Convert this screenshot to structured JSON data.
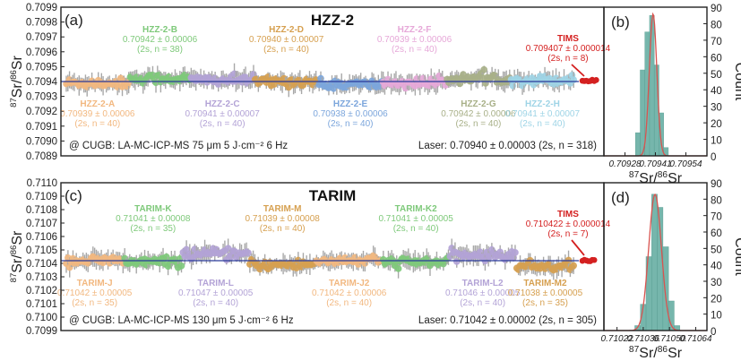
{
  "chart_data": [
    {
      "panel": "(a)",
      "type": "scatter",
      "title": "HZZ-2",
      "ylabel": "87Sr/86Sr",
      "ylim": [
        0.7089,
        0.7099
      ],
      "yticks": [
        "0.7099",
        "0.7098",
        "0.7097",
        "0.7096",
        "0.7095",
        "0.7094",
        "0.7093",
        "0.7092",
        "0.7091",
        "0.7090",
        "0.7089"
      ],
      "mean_line": 0.7094,
      "groups": [
        {
          "name": "HZZ-2-A",
          "value": "0.70939 ± 0.00006",
          "stats": "(2s, n = 40)",
          "mean": 0.70939,
          "n": 40,
          "color": "#f2b880",
          "label_pos": "below"
        },
        {
          "name": "HZZ-2-B",
          "value": "0.70942 ± 0.00006",
          "stats": "(2s, n = 38)",
          "mean": 0.70942,
          "n": 38,
          "color": "#7ec97a",
          "label_pos": "above"
        },
        {
          "name": "HZZ-2-C",
          "value": "0.70941 ± 0.00007",
          "stats": "(2s, n = 40)",
          "mean": 0.70941,
          "n": 40,
          "color": "#b3a3d6",
          "label_pos": "below"
        },
        {
          "name": "HZZ-2-D",
          "value": "0.70940 ± 0.00007",
          "stats": "(2s, n = 40)",
          "mean": 0.7094,
          "n": 40,
          "color": "#d6a050",
          "label_pos": "above"
        },
        {
          "name": "HZZ-2-E",
          "value": "0.70938 ± 0.00006",
          "stats": "(2s, n = 40)",
          "mean": 0.70938,
          "n": 40,
          "color": "#7ca6dc",
          "label_pos": "below"
        },
        {
          "name": "HZZ-2-F",
          "value": "0.70939 ± 0.00006",
          "stats": "(2s, n = 40)",
          "mean": 0.70939,
          "n": 40,
          "color": "#e6a8d8",
          "label_pos": "above"
        },
        {
          "name": "HZZ-2-G",
          "value": "0.70942 ± 0.00006",
          "stats": "(2s, n = 40)",
          "mean": 0.70942,
          "n": 40,
          "color": "#a8b088",
          "label_pos": "below"
        },
        {
          "name": "HZZ-2-H",
          "value": "0.70941 ± 0.00007",
          "stats": "(2s, n = 40)",
          "mean": 0.70941,
          "n": 40,
          "color": "#9fd4e6",
          "label_pos": "below"
        }
      ],
      "tims": {
        "name": "TIMS",
        "value": "0.709407 ± 0.000014",
        "stats": "(2s, n = 8)",
        "mean": 0.709407,
        "n": 8,
        "color": "#d42020"
      },
      "note_left": "@ CUGB: LA-MC-ICP-MS  75 μm 5 J·cm⁻² 6 Hz",
      "note_right": "Laser: 0.70940 ± 0.00003 (2s, n = 318)"
    },
    {
      "panel": "(b)",
      "type": "bar",
      "subtype": "histogram",
      "xlabel": "87Sr/86Sr",
      "ylabel": "Count",
      "ylim": [
        0,
        90
      ],
      "yticks": [
        "90",
        "80",
        "70",
        "60",
        "50",
        "40",
        "30",
        "20",
        "10",
        "0"
      ],
      "xlim": [
        0.70919,
        0.70963
      ],
      "xticks": [
        "0.70928",
        "0.70941",
        "0.70954"
      ],
      "bin_centers": [
        0.709335,
        0.709355,
        0.709375,
        0.709395,
        0.709415,
        0.709435,
        0.709455
      ],
      "counts": [
        14,
        52,
        75,
        85,
        55,
        26,
        5
      ],
      "fit": {
        "type": "gaussian",
        "mean": 0.7094,
        "peak": 86,
        "sigma": 1.6e-05,
        "color": "#d9534f"
      },
      "bar_color": "#6fb3a8"
    },
    {
      "panel": "(c)",
      "type": "scatter",
      "title": "TARIM",
      "ylabel": "87Sr/86Sr",
      "ylim": [
        0.7099,
        0.711
      ],
      "yticks": [
        "0.7110",
        "0.7109",
        "0.7108",
        "0.7107",
        "0.7106",
        "0.7105",
        "0.7104",
        "0.7103",
        "0.7102",
        "0.7101",
        "0.7100",
        "0.7099"
      ],
      "mean_line": 0.71042,
      "groups": [
        {
          "name": "TARIM-J",
          "value": "0.71042 ± 0.00005",
          "stats": "(2s, n = 35)",
          "mean": 0.71042,
          "n": 35,
          "color": "#f2b880",
          "label_pos": "below"
        },
        {
          "name": "TARIM-K",
          "value": "0.71041 ± 0.00008",
          "stats": "(2s, n = 35)",
          "mean": 0.71041,
          "n": 35,
          "color": "#7ec97a",
          "label_pos": "above"
        },
        {
          "name": "TARIM-L",
          "value": "0.71047 ± 0.00005",
          "stats": "(2s, n = 40)",
          "mean": 0.71047,
          "n": 40,
          "color": "#b3a3d6",
          "label_pos": "below"
        },
        {
          "name": "TARIM-M",
          "value": "0.71039 ± 0.00008",
          "stats": "(2s, n = 40)",
          "mean": 0.71039,
          "n": 40,
          "color": "#d6a050",
          "label_pos": "above"
        },
        {
          "name": "TARIM-J2",
          "value": "0.71042 ± 0.00006",
          "stats": "(2s, n = 40)",
          "mean": 0.71042,
          "n": 40,
          "color": "#f2b880",
          "label_pos": "below"
        },
        {
          "name": "TARIM-K2",
          "value": "0.71041 ± 0.00005",
          "stats": "(2s, n = 40)",
          "mean": 0.71041,
          "n": 40,
          "color": "#7ec97a",
          "label_pos": "above"
        },
        {
          "name": "TARIM-L2",
          "value": "0.71046 ± 0.00005",
          "stats": "(2s, n = 40)",
          "mean": 0.71046,
          "n": 40,
          "color": "#b3a3d6",
          "label_pos": "below"
        },
        {
          "name": "TARIM-M2",
          "value": "0.71038 ± 0.00005",
          "stats": "(2s, n = 35)",
          "mean": 0.71038,
          "n": 35,
          "color": "#d6a050",
          "label_pos": "below"
        }
      ],
      "tims": {
        "name": "TIMS",
        "value": "0.710422 ± 0.000014",
        "stats": "(2s, n = 7)",
        "mean": 0.710422,
        "n": 7,
        "color": "#d42020"
      },
      "note_left": "@ CUGB: LA-MC-ICP-MS  130 μm 5 J·cm⁻² 6 Hz",
      "note_right": "Laser: 0.71042 ± 0.00002 (2s, n = 305)"
    },
    {
      "panel": "(d)",
      "type": "bar",
      "subtype": "histogram",
      "xlabel": "87Sr/86Sr",
      "ylabel": "Count",
      "ylim": [
        0,
        90
      ],
      "yticks": [
        "90",
        "80",
        "70",
        "60",
        "50",
        "40",
        "30",
        "20",
        "10",
        "0"
      ],
      "xlim": [
        0.71015,
        0.7107
      ],
      "xticks": [
        "0.71022",
        "0.71036",
        "0.71050",
        "0.71064"
      ],
      "bin_centers": [
        0.71033,
        0.71036,
        0.71039,
        0.71042,
        0.71045,
        0.71048,
        0.71051,
        0.71054
      ],
      "counts": [
        3,
        16,
        45,
        83,
        75,
        51,
        18,
        3
      ],
      "fit": {
        "type": "gaussian",
        "mean": 0.710423,
        "peak": 83,
        "sigma": 3.4e-05,
        "color": "#d9534f"
      },
      "bar_color": "#6fb3a8"
    }
  ],
  "colors": {
    "mean_line": "#2a3a9a",
    "error_bar": "#a0a0a0",
    "axis": "#222222",
    "tims": "#d42020"
  }
}
